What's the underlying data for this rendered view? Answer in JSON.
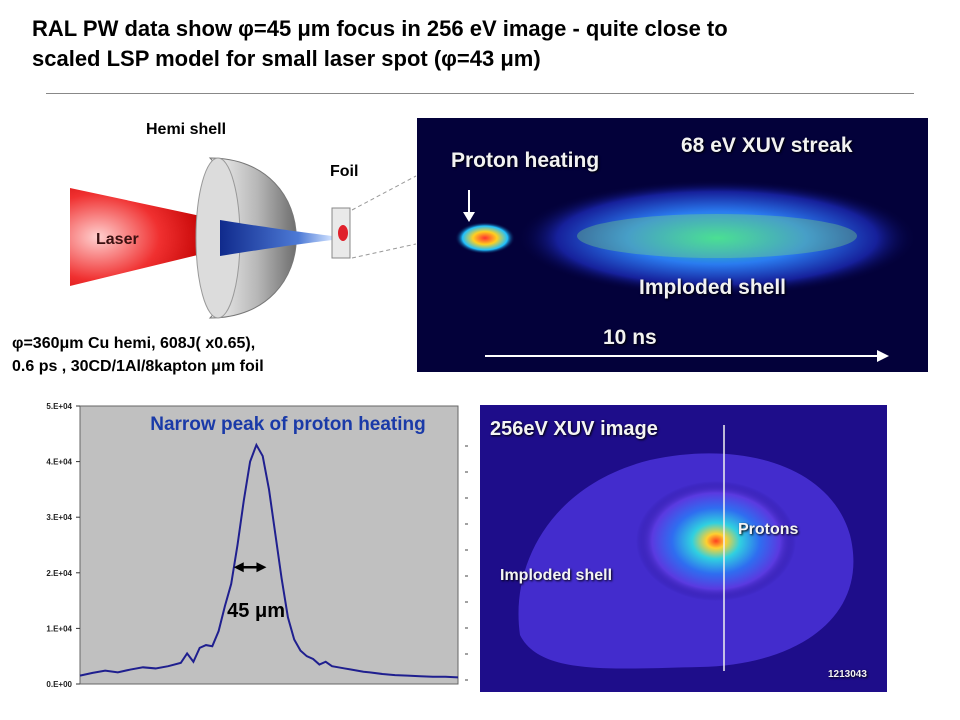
{
  "title": {
    "line1": "RAL PW data show φ=45 μm  focus in 256 eV image - quite close to",
    "line2": "scaled LSP model for small laser spot (φ=43 μm)"
  },
  "schematic": {
    "hemi_label": "Hemi shell",
    "foil_label": "Foil",
    "laser_label": "Laser",
    "specs_line1": "φ=360μm Cu hemi, 608J( x0.65),",
    "specs_line2": "0.6 ps , 30CD/1Al/8kapton μm foil"
  },
  "streak_image": {
    "title": "68 eV XUV streak",
    "proton_label": "Proton heating",
    "shell_label": "Imploded shell",
    "time_label": "10 ns"
  },
  "xuv_image": {
    "title": "256eV XUV image",
    "protons_label": "Protons",
    "shell_label": "Imploded shell",
    "shot_id": "1213043"
  },
  "colors": {
    "plot_background": "#c0c0c0",
    "trace": "#1f1f8f",
    "annotation": "#1a3aa8"
  },
  "chart_data": {
    "type": "line",
    "title": "Narrow peak of proton heating",
    "annotation": "45 μm",
    "ylim": [
      0,
      50000
    ],
    "yticks": [
      "0.E+00",
      "1.E+04",
      "2.E+04",
      "3.E+04",
      "4.E+04",
      "5.E+04"
    ],
    "ytick_values": [
      0,
      10000,
      20000,
      30000,
      40000,
      50000
    ],
    "xlim": [
      0,
      300
    ],
    "series": [
      {
        "x": [
          0,
          10,
          20,
          30,
          40,
          50,
          60,
          70,
          80,
          85,
          90,
          95,
          100,
          105,
          110,
          115,
          120,
          125,
          130,
          135,
          140,
          145,
          150,
          155,
          160,
          165,
          170,
          175,
          180,
          185,
          190,
          195,
          200,
          205,
          210,
          215,
          220,
          225,
          230,
          240,
          250,
          260,
          270,
          280,
          290,
          300
        ],
        "y": [
          1500,
          2000,
          2400,
          2100,
          2600,
          3000,
          2800,
          3200,
          3800,
          5500,
          4000,
          6500,
          7000,
          6800,
          9500,
          14000,
          18000,
          25000,
          33000,
          40000,
          43000,
          41000,
          35000,
          27000,
          19000,
          12000,
          8000,
          6000,
          5000,
          4500,
          3500,
          4000,
          3200,
          3000,
          2800,
          2600,
          2400,
          2200,
          2100,
          1800,
          1600,
          1500,
          1400,
          1300,
          1300,
          1200
        ]
      }
    ],
    "fwhm_marker": {
      "x_start": 122,
      "x_end": 148,
      "y": 21000
    }
  }
}
